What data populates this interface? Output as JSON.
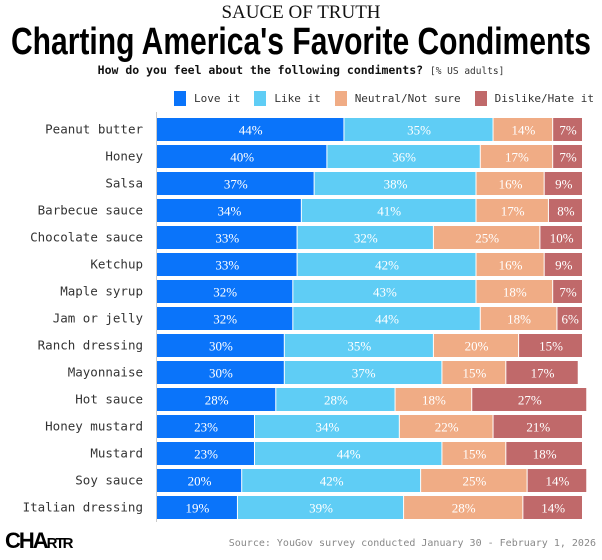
{
  "kicker": "SAUCE OF TRUTH",
  "title": "Charting America's Favorite Condiments",
  "subtitle": "How do you feel about the following condiments?",
  "subtitle_unit": "[% US adults]",
  "source": "Source: YouGov survey conducted January 30 - February 1, 2026",
  "logo": "CHARTR",
  "chart_data": {
    "type": "bar",
    "orientation": "horizontal",
    "stacked": true,
    "title": "Charting America's Favorite Condiments",
    "xlabel": "",
    "ylabel": "",
    "xlim": [
      0,
      100
    ],
    "legend_position": "top-right",
    "categories": [
      "Peanut butter",
      "Honey",
      "Salsa",
      "Barbecue sauce",
      "Chocolate sauce",
      "Ketchup",
      "Maple syrup",
      "Jam or jelly",
      "Ranch dressing",
      "Mayonnaise",
      "Hot sauce",
      "Honey mustard",
      "Mustard",
      "Soy sauce",
      "Italian dressing"
    ],
    "series": [
      {
        "name": "Love it",
        "color": "#0a74fa",
        "values": [
          44,
          40,
          37,
          34,
          33,
          33,
          32,
          32,
          30,
          30,
          28,
          23,
          23,
          20,
          19
        ]
      },
      {
        "name": "Like it",
        "color": "#5fcdf5",
        "values": [
          35,
          36,
          38,
          41,
          32,
          42,
          43,
          44,
          35,
          37,
          28,
          34,
          44,
          42,
          39
        ]
      },
      {
        "name": "Neutral/Not sure",
        "color": "#f0ac85",
        "values": [
          14,
          17,
          16,
          17,
          25,
          16,
          18,
          18,
          20,
          15,
          18,
          22,
          15,
          25,
          28
        ]
      },
      {
        "name": "Dislike/Hate it",
        "color": "#c0696a",
        "values": [
          7,
          7,
          9,
          8,
          10,
          9,
          7,
          6,
          15,
          17,
          27,
          21,
          18,
          14,
          14
        ]
      }
    ]
  }
}
